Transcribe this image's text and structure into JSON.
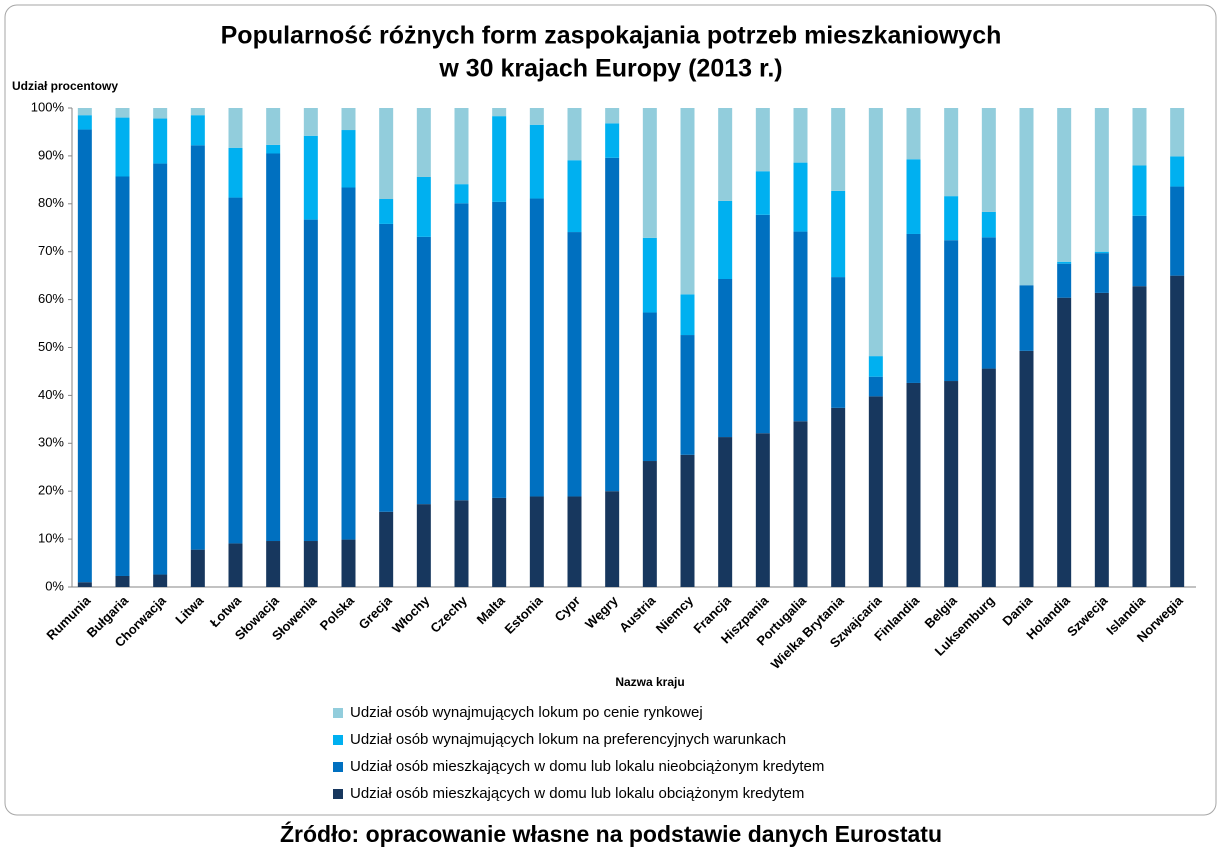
{
  "chart_data": {
    "type": "stacked_bar",
    "title": [
      "Popularność różnych form zaspokajania potrzeb mieszkaniowych",
      "w 30 krajach Europy (2013 r.)"
    ],
    "y_label": "Udział procentowy",
    "x_label": "Nazwa kraju",
    "source": "Źródło: opracowanie własne na podstawie danych Eurostatu",
    "categories": [
      "Rumunia",
      "Bułgaria",
      "Chorwacja",
      "Litwa",
      "Łotwa",
      "Słowacja",
      "Słowenia",
      "Polska",
      "Grecja",
      "Włochy",
      "Czechy",
      "Malta",
      "Estonia",
      "Cypr",
      "Węgry",
      "Austria",
      "Niemcy",
      "Francja",
      "Hiszpania",
      "Portugalia",
      "Wielka Brytania",
      "Szwajcaria",
      "Finlandia",
      "Belgia",
      "Luksemburg",
      "Dania",
      "Holandia",
      "Szwecja",
      "Islandia",
      "Norwegia"
    ],
    "series": [
      {
        "name": "Udział osób mieszkających w domu lub lokalu obciążonym kredytem",
        "color": "#17375e",
        "values": [
          1,
          2.3,
          2.6,
          7.8,
          9.1,
          9.6,
          9.6,
          9.9,
          15.7,
          17.3,
          18.1,
          18.6,
          18.9,
          18.9,
          20,
          26.3,
          27.6,
          31.3,
          32.1,
          34.6,
          37.4,
          39.8,
          42.6,
          43,
          45.6,
          49.3,
          60.4,
          61.4,
          62.8,
          65
        ]
      },
      {
        "name": "Udział osób mieszkających w domu lub lokalu nieobciążonym kredytem",
        "color": "#0070c0",
        "values": [
          94.5,
          83.4,
          85.8,
          84.4,
          72.2,
          80.9,
          67.1,
          73.5,
          60.1,
          55.8,
          62,
          61.8,
          62.2,
          55.2,
          69.6,
          31,
          25,
          33,
          45.6,
          39.6,
          27.3,
          4.1,
          31.1,
          29.4,
          27.4,
          13.7,
          7.1,
          8.3,
          14.7,
          18.6
        ]
      },
      {
        "name": "Udział osób wynajmujących lokum na preferencyjnych warunkach",
        "color": "#00b0f0",
        "values": [
          3,
          12.3,
          9.4,
          6.3,
          10.4,
          1.8,
          17.5,
          12,
          5.2,
          12.5,
          4,
          17.9,
          15.4,
          15,
          7.2,
          15.6,
          8.5,
          16.3,
          9.1,
          14.4,
          18,
          4.3,
          15.6,
          9.2,
          5.3,
          0,
          0.4,
          0.3,
          10.5,
          6.3
        ]
      },
      {
        "name": "Udział osób wynajmujących lokum po cenie rynkowej",
        "color": "#92cddc",
        "values": [
          1.5,
          2,
          2.2,
          1.5,
          8.3,
          7.7,
          5.8,
          4.6,
          19,
          14.4,
          15.9,
          1.7,
          3.5,
          10.9,
          3.2,
          27.1,
          38.9,
          19.4,
          13.2,
          11.4,
          17.3,
          51.8,
          10.7,
          18.4,
          21.7,
          37,
          32.1,
          30,
          12,
          10.1
        ]
      }
    ],
    "ylim": [
      0,
      100
    ],
    "yticks": [
      {
        "value": 0,
        "label": "0%"
      },
      {
        "value": 10,
        "label": "10%"
      },
      {
        "value": 20,
        "label": "20%"
      },
      {
        "value": 30,
        "label": "30%"
      },
      {
        "value": 40,
        "label": "40%"
      },
      {
        "value": 50,
        "label": "50%"
      },
      {
        "value": 60,
        "label": "60%"
      },
      {
        "value": 70,
        "label": "70%"
      },
      {
        "value": 80,
        "label": "80%"
      },
      {
        "value": 90,
        "label": "90%"
      },
      {
        "value": 100,
        "label": "100%"
      }
    ],
    "grid": false
  }
}
